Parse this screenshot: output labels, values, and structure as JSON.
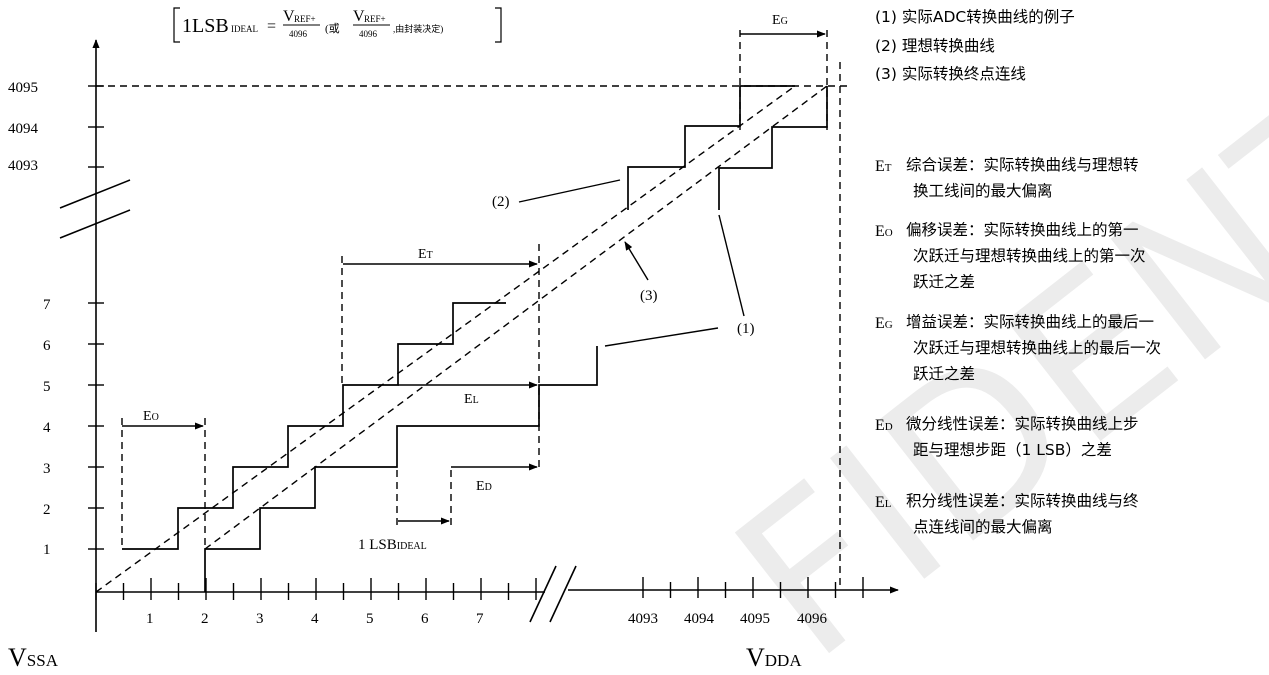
{
  "formula": {
    "main": "1LSB",
    "ideal_sub": "IDEAL",
    "equals": "=",
    "num": "V",
    "num_sub": "REF+",
    "den": "4096",
    "paren_open": "(或",
    "num2": "V",
    "num2_sub": "REF+",
    "den2": "4096",
    "note": ",由封装决定)"
  },
  "x_axis": {
    "origin_label": "V",
    "origin_label_sub": "SSA",
    "end_label": "V",
    "end_label_sub": "DDA",
    "ticks_left": [
      "1",
      "2",
      "3",
      "4",
      "5",
      "6",
      "7"
    ],
    "ticks_right": [
      "4093",
      "4094",
      "4095",
      "4096"
    ]
  },
  "y_axis": {
    "ticks_low": [
      "1",
      "2",
      "3",
      "4",
      "5",
      "6",
      "7"
    ],
    "ticks_high": [
      "4093",
      "4094",
      "4095"
    ]
  },
  "marks": {
    "eo": {
      "t": "E",
      "s": "O"
    },
    "et": {
      "t": "E",
      "s": "T"
    },
    "el": {
      "t": "E",
      "s": "L"
    },
    "ed": {
      "t": "E",
      "s": "D"
    },
    "eg": {
      "t": "E",
      "s": "G"
    },
    "lsb": {
      "t": "1 LSB",
      "s": "IDEAL"
    },
    "c1": "(1)",
    "c2": "(2)",
    "c3": "(3)"
  },
  "legend": {
    "curves": [
      "(1) 实际ADC转换曲线的例子",
      "(2) 理想转换曲线",
      "(3) 实际转换终点连线"
    ],
    "errors": [
      {
        "tag": "E",
        "sub": "T",
        "lines": [
          "综合误差：实际转换曲线与理想转",
          "换工线间的最大偏离"
        ]
      },
      {
        "tag": "E",
        "sub": "O",
        "lines": [
          "偏移误差：实际转换曲线上的第一",
          "次跃迁与理想转换曲线上的第一次",
          "跃迁之差"
        ]
      },
      {
        "tag": "E",
        "sub": "G",
        "lines": [
          "增益误差：实际转换曲线上的最后一",
          "次跃迁与理想转换曲线上的最后一次",
          "跃迁之差"
        ]
      },
      {
        "tag": "E",
        "sub": "D",
        "lines": [
          "微分线性误差：实际转换曲线上步",
          "距与理想步距（1 LSB）之差"
        ]
      },
      {
        "tag": "E",
        "sub": "L",
        "lines": [
          "积分线性误差：实际转换曲线与终",
          "点连线间的最大偏离"
        ]
      }
    ]
  },
  "watermark": "FIDENTIAL"
}
